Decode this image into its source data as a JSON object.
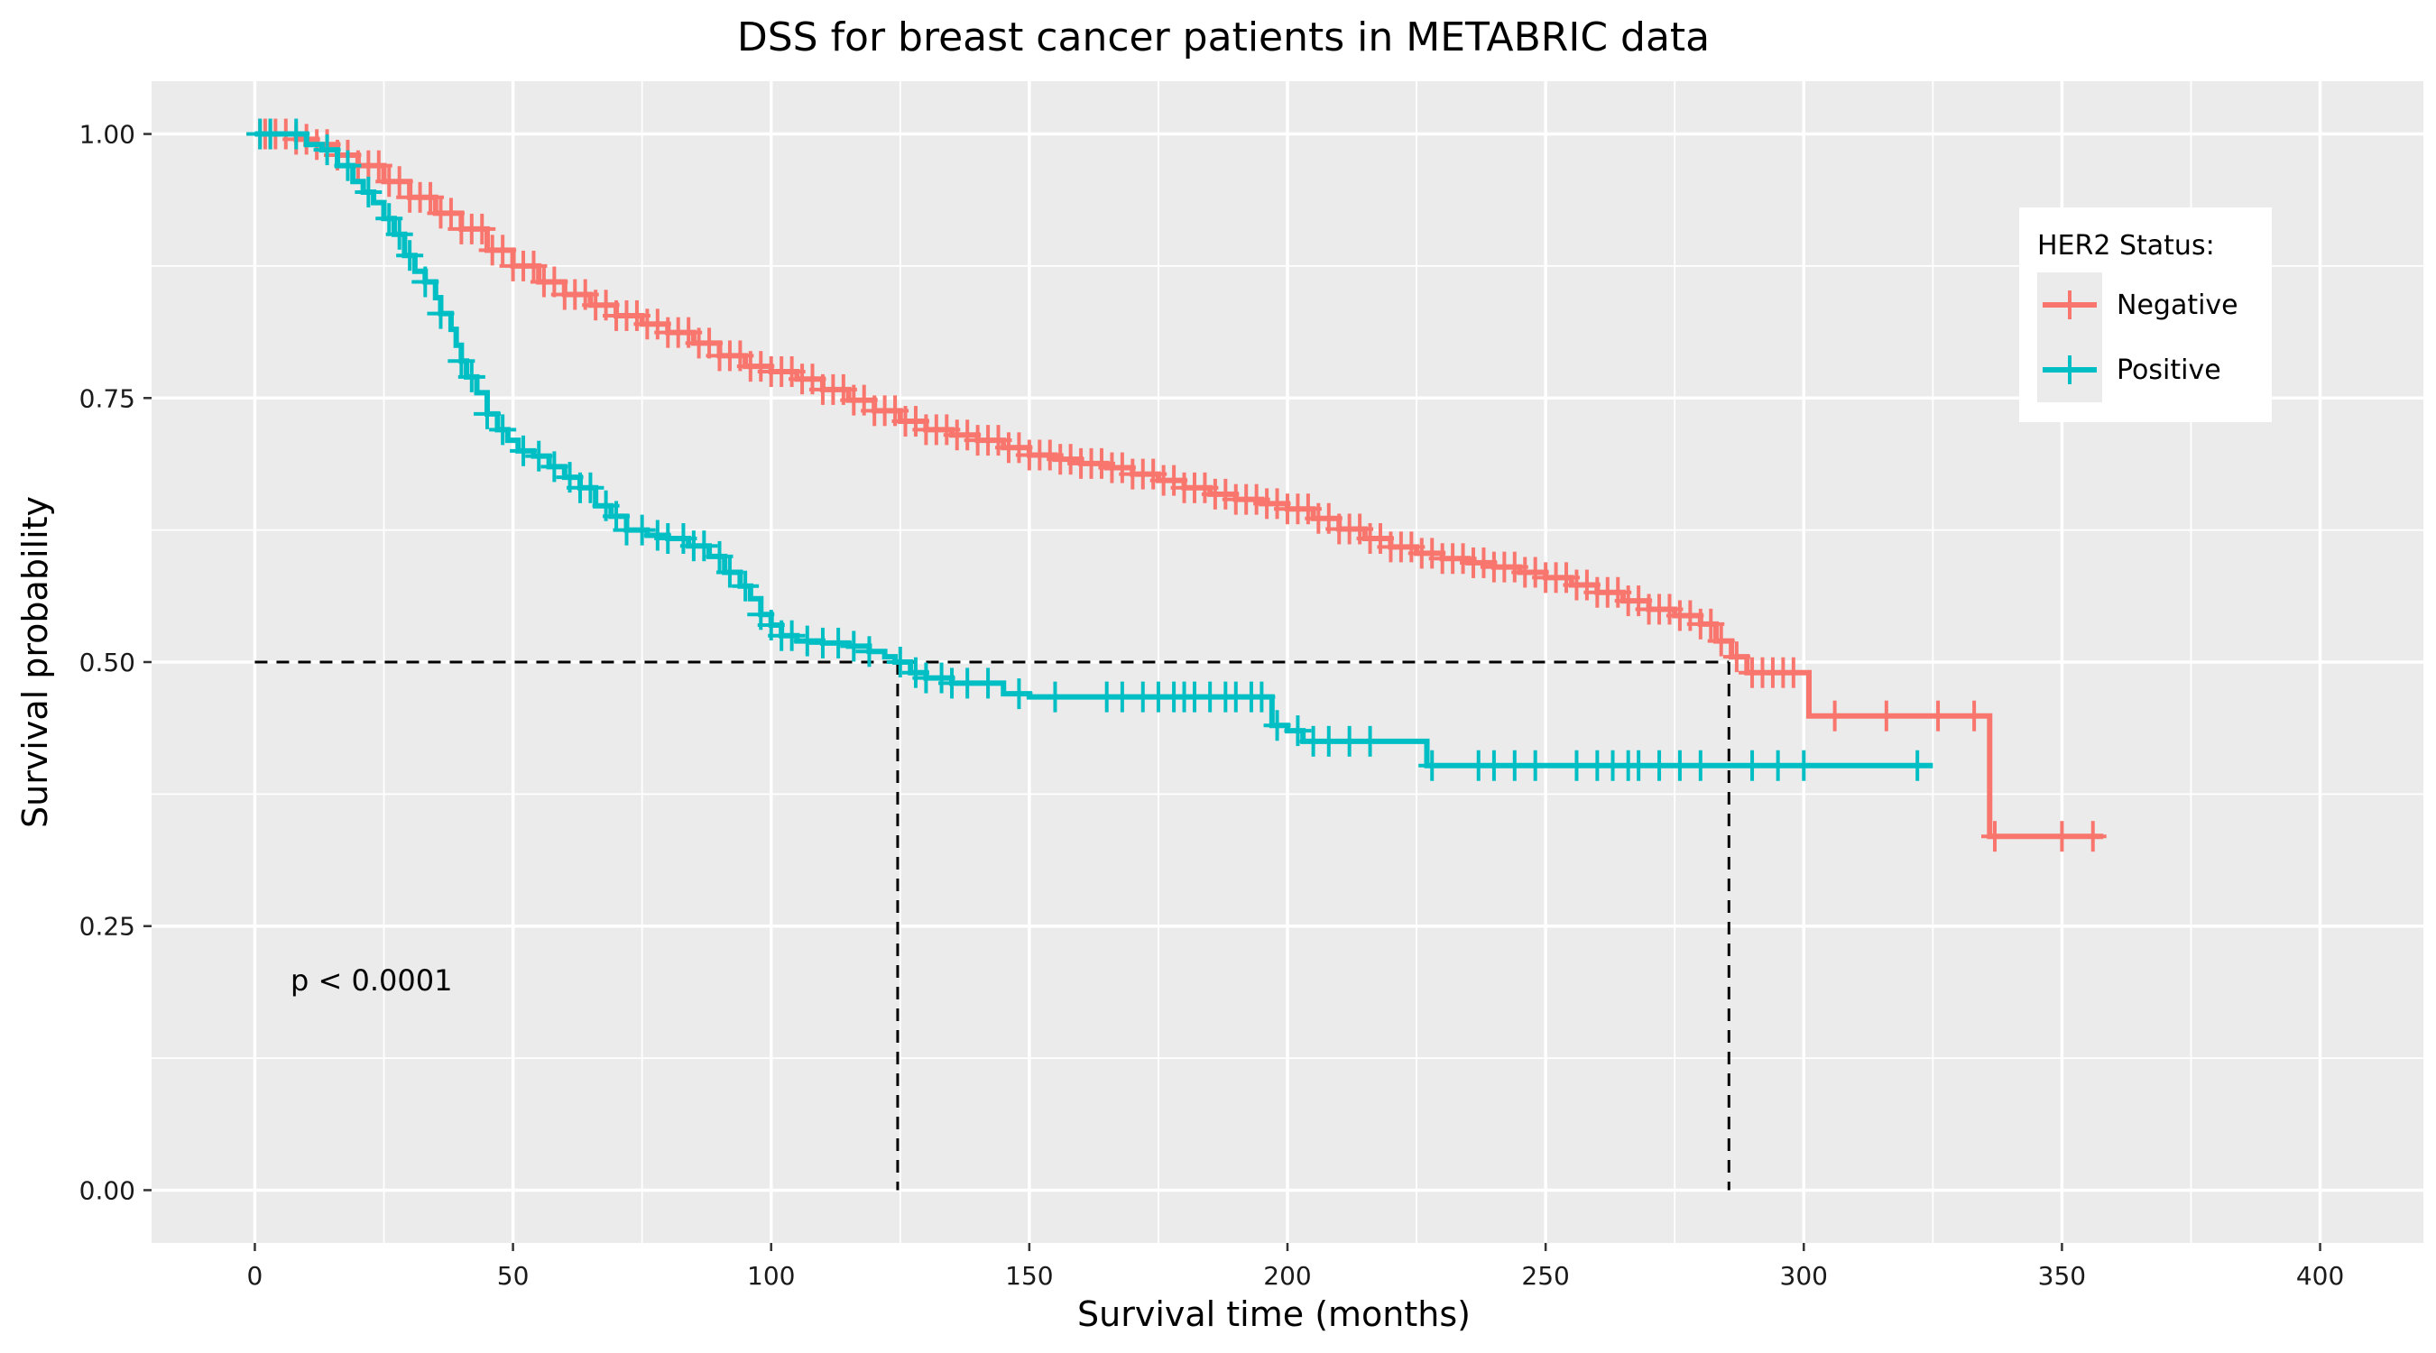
{
  "chart_data": {
    "type": "line",
    "title": "DSS for breast cancer patients in METABRIC data",
    "xlabel": "Survival time (months)",
    "ylabel": "Survival probability",
    "xlim": [
      -20,
      420
    ],
    "ylim": [
      -0.05,
      1.05
    ],
    "x_ticks": [
      0,
      50,
      100,
      150,
      200,
      250,
      300,
      350,
      400
    ],
    "x_tick_labels": [
      "0",
      "50",
      "100",
      "150",
      "200",
      "250",
      "300",
      "350",
      "400"
    ],
    "y_ticks": [
      0,
      0.25,
      0.5,
      0.75,
      1.0
    ],
    "y_tick_labels": [
      "0.00",
      "0.25",
      "0.50",
      "0.75",
      "1.00"
    ],
    "grid": true,
    "background": "#EBEBEB",
    "legend": {
      "title": "HER2 Status:",
      "position": "top-right"
    },
    "annotation": "p < 0.0001",
    "median_reference": {
      "y": 0.5,
      "x": [
        124.5,
        285.5
      ]
    },
    "series": [
      {
        "name": "Negative",
        "color": "#F8766D",
        "steps": [
          [
            0,
            1.0
          ],
          [
            3,
            1.0
          ],
          [
            8,
            0.995
          ],
          [
            12,
            0.99
          ],
          [
            16,
            0.98
          ],
          [
            20,
            0.97
          ],
          [
            25,
            0.955
          ],
          [
            30,
            0.94
          ],
          [
            35,
            0.925
          ],
          [
            40,
            0.91
          ],
          [
            45,
            0.89
          ],
          [
            50,
            0.875
          ],
          [
            55,
            0.86
          ],
          [
            60,
            0.848
          ],
          [
            65,
            0.838
          ],
          [
            70,
            0.828
          ],
          [
            75,
            0.82
          ],
          [
            80,
            0.812
          ],
          [
            85,
            0.802
          ],
          [
            90,
            0.79
          ],
          [
            95,
            0.78
          ],
          [
            100,
            0.775
          ],
          [
            105,
            0.768
          ],
          [
            110,
            0.758
          ],
          [
            115,
            0.748
          ],
          [
            120,
            0.738
          ],
          [
            125,
            0.728
          ],
          [
            130,
            0.72
          ],
          [
            135,
            0.715
          ],
          [
            140,
            0.71
          ],
          [
            145,
            0.703
          ],
          [
            150,
            0.696
          ],
          [
            155,
            0.692
          ],
          [
            160,
            0.688
          ],
          [
            165,
            0.684
          ],
          [
            170,
            0.678
          ],
          [
            175,
            0.672
          ],
          [
            180,
            0.665
          ],
          [
            185,
            0.659
          ],
          [
            190,
            0.654
          ],
          [
            195,
            0.65
          ],
          [
            200,
            0.645
          ],
          [
            205,
            0.636
          ],
          [
            210,
            0.626
          ],
          [
            215,
            0.617
          ],
          [
            220,
            0.609
          ],
          [
            225,
            0.603
          ],
          [
            230,
            0.598
          ],
          [
            235,
            0.594
          ],
          [
            240,
            0.59
          ],
          [
            245,
            0.585
          ],
          [
            250,
            0.58
          ],
          [
            255,
            0.573
          ],
          [
            260,
            0.566
          ],
          [
            265,
            0.558
          ],
          [
            270,
            0.55
          ],
          [
            275,
            0.544
          ],
          [
            280,
            0.536
          ],
          [
            283,
            0.52
          ],
          [
            286,
            0.505
          ],
          [
            289,
            0.49
          ],
          [
            300,
            0.49
          ],
          [
            301,
            0.449
          ],
          [
            335,
            0.449
          ],
          [
            336,
            0.335
          ],
          [
            358,
            0.335
          ]
        ],
        "censor_x": [
          1,
          2,
          3,
          4,
          6,
          8,
          10,
          12,
          14,
          16,
          18,
          20,
          22,
          24,
          26,
          28,
          30,
          32,
          34,
          36,
          38,
          40,
          42,
          44,
          46,
          48,
          50,
          52,
          54,
          56,
          58,
          60,
          62,
          64,
          66,
          68,
          70,
          72,
          74,
          76,
          78,
          80,
          82,
          84,
          86,
          88,
          90,
          92,
          94,
          96,
          98,
          100,
          102,
          104,
          106,
          108,
          110,
          112,
          114,
          116,
          118,
          120,
          122,
          124,
          126,
          128,
          130,
          132,
          134,
          136,
          138,
          140,
          142,
          144,
          146,
          148,
          150,
          152,
          154,
          156,
          158,
          160,
          162,
          164,
          166,
          168,
          170,
          172,
          174,
          176,
          178,
          180,
          182,
          184,
          186,
          188,
          190,
          192,
          194,
          196,
          198,
          200,
          202,
          204,
          206,
          208,
          210,
          212,
          214,
          216,
          218,
          220,
          222,
          224,
          226,
          228,
          230,
          232,
          234,
          236,
          238,
          240,
          242,
          244,
          246,
          248,
          250,
          252,
          254,
          256,
          258,
          260,
          262,
          264,
          266,
          268,
          270,
          272,
          274,
          276,
          278,
          280,
          282,
          284,
          287,
          290,
          292,
          294,
          296,
          298,
          306,
          316,
          326,
          333,
          337,
          350,
          356
        ]
      },
      {
        "name": "Positive",
        "color": "#00BFC4",
        "steps": [
          [
            0,
            1.0
          ],
          [
            5,
            1.0
          ],
          [
            10,
            0.99
          ],
          [
            13,
            0.985
          ],
          [
            16,
            0.97
          ],
          [
            19,
            0.955
          ],
          [
            21,
            0.945
          ],
          [
            23,
            0.935
          ],
          [
            25,
            0.92
          ],
          [
            27,
            0.905
          ],
          [
            29,
            0.885
          ],
          [
            31,
            0.87
          ],
          [
            33,
            0.86
          ],
          [
            35,
            0.845
          ],
          [
            36,
            0.83
          ],
          [
            38,
            0.815
          ],
          [
            39,
            0.8
          ],
          [
            40,
            0.785
          ],
          [
            41,
            0.77
          ],
          [
            43,
            0.755
          ],
          [
            45,
            0.735
          ],
          [
            47,
            0.72
          ],
          [
            49,
            0.71
          ],
          [
            51,
            0.7
          ],
          [
            54,
            0.695
          ],
          [
            57,
            0.685
          ],
          [
            60,
            0.675
          ],
          [
            63,
            0.665
          ],
          [
            66,
            0.648
          ],
          [
            69,
            0.638
          ],
          [
            72,
            0.625
          ],
          [
            76,
            0.62
          ],
          [
            80,
            0.617
          ],
          [
            84,
            0.61
          ],
          [
            88,
            0.6
          ],
          [
            91,
            0.585
          ],
          [
            94,
            0.572
          ],
          [
            96,
            0.56
          ],
          [
            98,
            0.545
          ],
          [
            100,
            0.535
          ],
          [
            102,
            0.525
          ],
          [
            105,
            0.52
          ],
          [
            110,
            0.518
          ],
          [
            115,
            0.515
          ],
          [
            119,
            0.51
          ],
          [
            122,
            0.505
          ],
          [
            124,
            0.5
          ],
          [
            127,
            0.49
          ],
          [
            130,
            0.485
          ],
          [
            135,
            0.48
          ],
          [
            140,
            0.48
          ],
          [
            145,
            0.47
          ],
          [
            150,
            0.467
          ],
          [
            196,
            0.467
          ],
          [
            197,
            0.44
          ],
          [
            200,
            0.435
          ],
          [
            203,
            0.425
          ],
          [
            226,
            0.425
          ],
          [
            227,
            0.402
          ],
          [
            325,
            0.402
          ]
        ],
        "censor_x": [
          1,
          3,
          8,
          14,
          18,
          22,
          26,
          28,
          30,
          33,
          36,
          40,
          42,
          45,
          48,
          52,
          55,
          58,
          61,
          63,
          65,
          68,
          70,
          72,
          75,
          78,
          80,
          83,
          85,
          87,
          90,
          92,
          95,
          98,
          100,
          102,
          104,
          107,
          110,
          113,
          116,
          119,
          125,
          128,
          130,
          133,
          135,
          138,
          142,
          148,
          155,
          165,
          168,
          172,
          175,
          178,
          180,
          182,
          185,
          188,
          190,
          193,
          195,
          198,
          202,
          205,
          208,
          212,
          216,
          228,
          237,
          240,
          244,
          248,
          256,
          260,
          263,
          266,
          268,
          272,
          276,
          280,
          290,
          295,
          300,
          322
        ]
      }
    ]
  }
}
